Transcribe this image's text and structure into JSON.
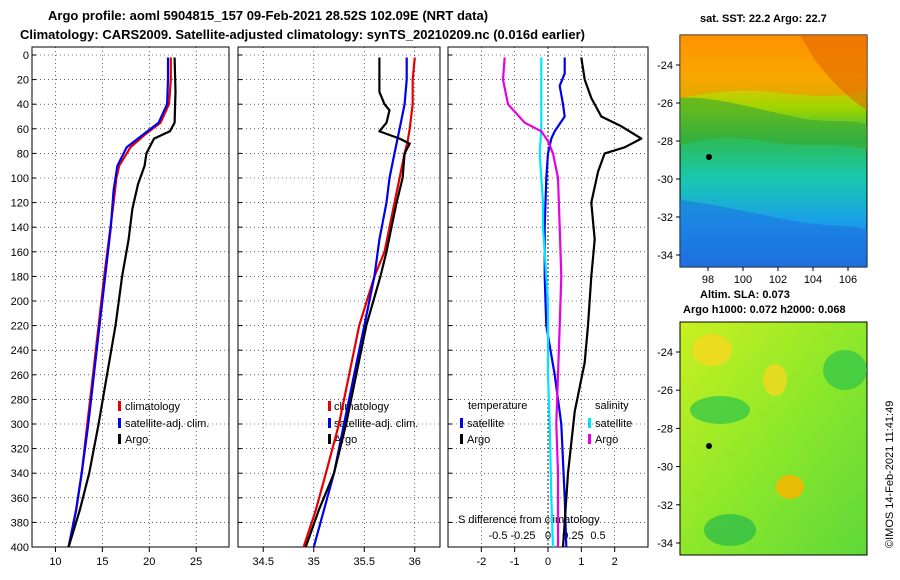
{
  "header": {
    "line1": "Argo profile: aoml 5904815_157 09-Feb-2021 28.52S 102.09E (NRT data)",
    "line2": "Climatology: CARS2009. Satellite-adjusted climatology: synTS_20210209.nc (0.016d earlier)"
  },
  "colors": {
    "climatology": "#e60000",
    "satellite": "#0000ee",
    "argo": "#000000",
    "sat_sal": "#00e5ff",
    "argo_sal": "#e600e6"
  },
  "chart_data": [
    {
      "type": "line",
      "name": "temperature-profile",
      "ylim": [
        400,
        0
      ],
      "xlim": [
        7.5,
        28.5
      ],
      "y_ticks": [
        "0",
        "20",
        "40",
        "60",
        "80",
        "100",
        "120",
        "140",
        "160",
        "180",
        "200",
        "220",
        "240",
        "260",
        "280",
        "300",
        "320",
        "340",
        "360",
        "380",
        "400"
      ],
      "x_ticks": [
        "10",
        "15",
        "20",
        "25"
      ],
      "legend": [
        "climatology",
        "satellite-adj. clim.",
        "Argo"
      ],
      "series": [
        {
          "name": "climatology",
          "points": [
            [
              22.3,
              2
            ],
            [
              22.3,
              20
            ],
            [
              22.1,
              40
            ],
            [
              21.2,
              55
            ],
            [
              19.5,
              65
            ],
            [
              18,
              75
            ],
            [
              16.8,
              90
            ],
            [
              16.5,
              100
            ],
            [
              16.2,
              120
            ],
            [
              15.7,
              150
            ],
            [
              15.2,
              180
            ],
            [
              14.6,
              220
            ],
            [
              14,
              260
            ],
            [
              13.4,
              300
            ],
            [
              12.8,
              340
            ],
            [
              12.2,
              370
            ],
            [
              11.4,
              400
            ]
          ]
        },
        {
          "name": "satellite-adj. clim.",
          "points": [
            [
              22,
              2
            ],
            [
              22,
              20
            ],
            [
              21.9,
              40
            ],
            [
              21,
              55
            ],
            [
              19.3,
              65
            ],
            [
              17.6,
              75
            ],
            [
              16.6,
              90
            ],
            [
              16.2,
              110
            ],
            [
              15.9,
              140
            ],
            [
              15.3,
              180
            ],
            [
              14.7,
              220
            ],
            [
              14.1,
              260
            ],
            [
              13.5,
              300
            ],
            [
              12.8,
              340
            ],
            [
              12.2,
              370
            ],
            [
              11.4,
              400
            ]
          ]
        },
        {
          "name": "Argo",
          "points": [
            [
              22.7,
              2
            ],
            [
              22.8,
              30
            ],
            [
              22.7,
              55
            ],
            [
              22.2,
              62
            ],
            [
              20.5,
              68
            ],
            [
              19.7,
              80
            ],
            [
              19.5,
              90
            ],
            [
              18.8,
              105
            ],
            [
              18.2,
              125
            ],
            [
              17.8,
              150
            ],
            [
              17.1,
              180
            ],
            [
              16.4,
              220
            ],
            [
              15.5,
              260
            ],
            [
              14.6,
              300
            ],
            [
              13.6,
              340
            ],
            [
              12.6,
              370
            ],
            [
              11.4,
              400
            ]
          ]
        }
      ]
    },
    {
      "type": "line",
      "name": "salinity-profile",
      "ylim": [
        400,
        0
      ],
      "xlim": [
        34.25,
        36.25
      ],
      "x_ticks": [
        "34.5",
        "35",
        "35.5",
        "36"
      ],
      "legend": [
        "climatology",
        "satellite-adj. clim.",
        "Argo"
      ],
      "series": [
        {
          "name": "climatology",
          "points": [
            [
              36,
              2
            ],
            [
              35.98,
              20
            ],
            [
              35.98,
              40
            ],
            [
              35.95,
              60
            ],
            [
              35.93,
              70
            ],
            [
              35.9,
              80
            ],
            [
              35.85,
              100
            ],
            [
              35.8,
              120
            ],
            [
              35.75,
              140
            ],
            [
              35.7,
              160
            ],
            [
              35.6,
              180
            ],
            [
              35.45,
              220
            ],
            [
              35.35,
              260
            ],
            [
              35.25,
              300
            ],
            [
              35.12,
              340
            ],
            [
              35.02,
              370
            ],
            [
              34.9,
              400
            ]
          ]
        },
        {
          "name": "satellite-adj. clim.",
          "points": [
            [
              35.92,
              2
            ],
            [
              35.92,
              20
            ],
            [
              35.9,
              40
            ],
            [
              35.85,
              60
            ],
            [
              35.8,
              80
            ],
            [
              35.75,
              100
            ],
            [
              35.72,
              120
            ],
            [
              35.65,
              150
            ],
            [
              35.6,
              180
            ],
            [
              35.5,
              220
            ],
            [
              35.4,
              260
            ],
            [
              35.3,
              300
            ],
            [
              35.2,
              340
            ],
            [
              35.1,
              370
            ],
            [
              35,
              400
            ]
          ]
        },
        {
          "name": "Argo",
          "points": [
            [
              35.65,
              2
            ],
            [
              35.65,
              20
            ],
            [
              35.65,
              30
            ],
            [
              35.7,
              40
            ],
            [
              35.75,
              45
            ],
            [
              35.72,
              55
            ],
            [
              35.65,
              62
            ],
            [
              35.85,
              68
            ],
            [
              35.95,
              72
            ],
            [
              35.9,
              80
            ],
            [
              35.88,
              100
            ],
            [
              35.82,
              120
            ],
            [
              35.77,
              140
            ],
            [
              35.72,
              160
            ],
            [
              35.66,
              180
            ],
            [
              35.52,
              220
            ],
            [
              35.42,
              260
            ],
            [
              35.32,
              300
            ],
            [
              35.2,
              340
            ],
            [
              35.05,
              370
            ],
            [
              34.92,
              400
            ]
          ]
        }
      ]
    },
    {
      "type": "line",
      "name": "difference-from-climatology",
      "ylim": [
        400,
        0
      ],
      "xlim": [
        -3,
        3
      ],
      "x_ticks_bottom": [
        "-2",
        "-1",
        "0",
        "1",
        "2"
      ],
      "x_ticks_s": [
        "-0.5",
        "-0.25",
        "0",
        "0.25",
        "0.5"
      ],
      "x_title": "S difference from climatology",
      "legend": {
        "temperature": "temperature",
        "salinity": "salinity",
        "satellite": "satellite",
        "argo": "Argo"
      },
      "series": [
        {
          "name": "temperature satellite",
          "points": [
            [
              0.5,
              2
            ],
            [
              0.5,
              15
            ],
            [
              0.35,
              25
            ],
            [
              0.45,
              40
            ],
            [
              0.5,
              50
            ],
            [
              0.2,
              62
            ],
            [
              0.1,
              68
            ],
            [
              0,
              80
            ],
            [
              -0.05,
              100
            ],
            [
              -0.1,
              140
            ],
            [
              -0.1,
              180
            ],
            [
              -0.05,
              220
            ],
            [
              0.2,
              260
            ],
            [
              0.4,
              300
            ],
            [
              0.5,
              360
            ],
            [
              0.55,
              400
            ]
          ]
        },
        {
          "name": "temperature Argo",
          "points": [
            [
              1,
              2
            ],
            [
              1.1,
              20
            ],
            [
              1.3,
              35
            ],
            [
              1.6,
              50
            ],
            [
              2.2,
              58
            ],
            [
              2.8,
              68
            ],
            [
              2.3,
              75
            ],
            [
              1.7,
              80
            ],
            [
              1.5,
              95
            ],
            [
              1.3,
              120
            ],
            [
              1.4,
              150
            ],
            [
              1.3,
              180
            ],
            [
              1.2,
              220
            ],
            [
              1.1,
              250
            ],
            [
              0.8,
              290
            ],
            [
              0.6,
              340
            ],
            [
              0.5,
              380
            ],
            [
              0.45,
              400
            ]
          ]
        },
        {
          "name": "salinity satellite",
          "points": [
            [
              -0.2,
              2
            ],
            [
              -0.2,
              20
            ],
            [
              -0.2,
              40
            ],
            [
              -0.2,
              60
            ],
            [
              -0.25,
              80
            ],
            [
              -0.2,
              100
            ],
            [
              -0.15,
              120
            ],
            [
              -0.15,
              140
            ],
            [
              -0.1,
              160
            ],
            [
              -0.05,
              180
            ],
            [
              0,
              200
            ],
            [
              0,
              260
            ],
            [
              0.05,
              300
            ],
            [
              0.1,
              360
            ],
            [
              0.15,
              400
            ]
          ]
        },
        {
          "name": "salinity Argo",
          "points": [
            [
              -1.3,
              2
            ],
            [
              -1.35,
              20
            ],
            [
              -1.2,
              40
            ],
            [
              -0.7,
              55
            ],
            [
              -0.2,
              62
            ],
            [
              0,
              70
            ],
            [
              0.15,
              80
            ],
            [
              0.3,
              100
            ],
            [
              0.35,
              140
            ],
            [
              0.4,
              180
            ],
            [
              0.35,
              220
            ],
            [
              0.3,
              260
            ],
            [
              0.25,
              300
            ],
            [
              0.3,
              340
            ],
            [
              0.3,
              400
            ]
          ]
        }
      ]
    },
    {
      "type": "heatmap",
      "name": "sst-map",
      "title": "sat. SST: 22.2 Argo: 22.7",
      "y_ticks": [
        "-24",
        "-26",
        "-28",
        "-30",
        "-32",
        "-34"
      ],
      "x_ticks": [
        "98",
        "100",
        "102",
        "104",
        "106"
      ]
    },
    {
      "type": "heatmap",
      "name": "sla-map",
      "title_line1": "Altim. SLA: 0.073",
      "title_line2": "Argo h1000: 0.072 h2000: 0.068",
      "y_ticks": [
        "-24",
        "-26",
        "-28",
        "-30",
        "-32",
        "-34"
      ]
    }
  ],
  "footer": {
    "stamp": "©IMOS 14-Feb-2021 11:41:49"
  }
}
